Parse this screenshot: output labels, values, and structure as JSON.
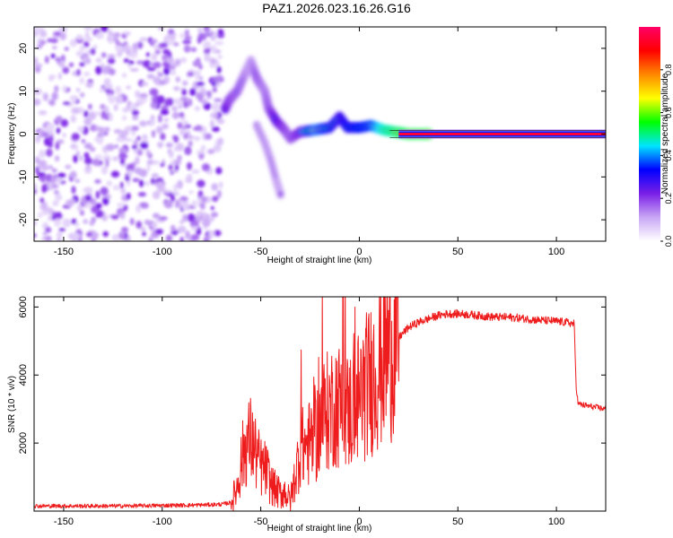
{
  "title": "PAZ1.2026.023.16.26.G16",
  "colors": {
    "snr_line": "#ee1c1c",
    "axis": "#000000",
    "noise_purple": "#7a1fe6"
  },
  "chart_data": [
    {
      "type": "heatmap",
      "name": "spectrogram",
      "xlabel": "Height of straight line (km)",
      "ylabel": "Frequency (Hz)",
      "xlim": [
        -165,
        125
      ],
      "ylim": [
        -25,
        25
      ],
      "xticks": [
        -150,
        -100,
        -50,
        0,
        50,
        100
      ],
      "xtick_labels": [
        "-150",
        "-100",
        "-50",
        "0",
        "50",
        "100"
      ],
      "yticks": [
        -20,
        -10,
        0,
        10,
        20
      ],
      "ytick_labels": [
        "-20",
        "-10",
        "0",
        "10",
        "20"
      ],
      "colorbar": {
        "label": "Normalized spectral amplitude",
        "range": [
          0,
          1
        ],
        "ticks": [
          0.0,
          0.2,
          0.4,
          0.6,
          0.8
        ],
        "tick_labels": [
          "0.0",
          "0.2",
          "0.4",
          "0.6",
          "0.8"
        ],
        "colormap": [
          "#ffffff",
          "#c9a7f5",
          "#7a1fe6",
          "#0000ff",
          "#00e5ff",
          "#00ff00",
          "#ffff00",
          "#ff8800",
          "#ff0000",
          "#ff0066"
        ]
      },
      "noise_region_x": [
        -165,
        -70
      ],
      "features": {
        "carrier_line": {
          "x": [
            20,
            125
          ],
          "frequency": 0,
          "amplitude": 0.95
        },
        "track_points": [
          {
            "x": -68,
            "y": 6,
            "a": 0.45
          },
          {
            "x": -66,
            "y": 8,
            "a": 0.35
          },
          {
            "x": -62,
            "y": 10,
            "a": 0.3
          },
          {
            "x": -58,
            "y": 14,
            "a": 0.25
          },
          {
            "x": -55,
            "y": 17,
            "a": 0.2
          },
          {
            "x": -52,
            "y": 13,
            "a": 0.3
          },
          {
            "x": -48,
            "y": 10,
            "a": 0.25
          },
          {
            "x": -46,
            "y": 6,
            "a": 0.3
          },
          {
            "x": -42,
            "y": 3,
            "a": 0.45
          },
          {
            "x": -38,
            "y": 1,
            "a": 0.35
          },
          {
            "x": -35,
            "y": -1,
            "a": 0.3
          },
          {
            "x": -30,
            "y": 0.5,
            "a": 0.4
          },
          {
            "x": -22,
            "y": 1,
            "a": 0.7
          },
          {
            "x": -15,
            "y": 1.5,
            "a": 0.55
          },
          {
            "x": -10,
            "y": 4,
            "a": 0.5
          },
          {
            "x": -6,
            "y": 1.5,
            "a": 0.55
          },
          {
            "x": 0,
            "y": 1.5,
            "a": 0.6
          },
          {
            "x": 6,
            "y": 2,
            "a": 0.65
          },
          {
            "x": 12,
            "y": 1,
            "a": 0.85
          },
          {
            "x": 18,
            "y": 0.5,
            "a": 0.9
          },
          {
            "x": 25,
            "y": 0,
            "a": 0.95
          },
          {
            "x": 35,
            "y": 0,
            "a": 0.95
          }
        ],
        "descending_branch": [
          {
            "x": -52,
            "y": 2,
            "a": 0.2
          },
          {
            "x": -48,
            "y": -2,
            "a": 0.2
          },
          {
            "x": -45,
            "y": -6,
            "a": 0.2
          },
          {
            "x": -42,
            "y": -11,
            "a": 0.2
          },
          {
            "x": -40,
            "y": -14,
            "a": 0.2
          }
        ]
      }
    },
    {
      "type": "line",
      "name": "snr",
      "xlabel": "Height of straight line (km)",
      "ylabel": "SNR (10 * v/v)",
      "xlim": [
        -165,
        125
      ],
      "ylim": [
        0,
        6300
      ],
      "xticks": [
        -150,
        -100,
        -50,
        0,
        50,
        100
      ],
      "xtick_labels": [
        "-150",
        "-100",
        "-50",
        "0",
        "50",
        "100"
      ],
      "yticks": [
        2000,
        4000,
        6000
      ],
      "ytick_labels": [
        "2000",
        "4000",
        "6000"
      ],
      "series": [
        {
          "name": "SNR",
          "x": [
            -165,
            -120,
            -80,
            -70,
            -65,
            -62,
            -60,
            -58,
            -55,
            -52,
            -50,
            -47,
            -45,
            -42,
            -40,
            -38,
            -35,
            -32,
            -30,
            -28,
            -25,
            -22,
            -20,
            -18,
            -15,
            -12,
            -10,
            -8,
            -6,
            -4,
            -2,
            0,
            5,
            10,
            15,
            20,
            25,
            30,
            35,
            40,
            45,
            50,
            55,
            60,
            65,
            70,
            75,
            80,
            85,
            90,
            95,
            100,
            105,
            109,
            110,
            111,
            115,
            120,
            125
          ],
          "values": [
            150,
            150,
            180,
            200,
            250,
            700,
            1400,
            1900,
            2100,
            1600,
            1300,
            1200,
            800,
            600,
            500,
            600,
            300,
            1200,
            1800,
            1900,
            2000,
            2200,
            2600,
            2800,
            3000,
            3200,
            3100,
            3300,
            2900,
            3000,
            3200,
            3400,
            3800,
            4300,
            4800,
            5100,
            5400,
            5550,
            5650,
            5750,
            5800,
            5800,
            5780,
            5750,
            5720,
            5700,
            5700,
            5680,
            5650,
            5620,
            5600,
            5580,
            5550,
            5500,
            3700,
            3150,
            3100,
            3050,
            3000
          ],
          "color": "#ee1c1c"
        }
      ]
    }
  ]
}
